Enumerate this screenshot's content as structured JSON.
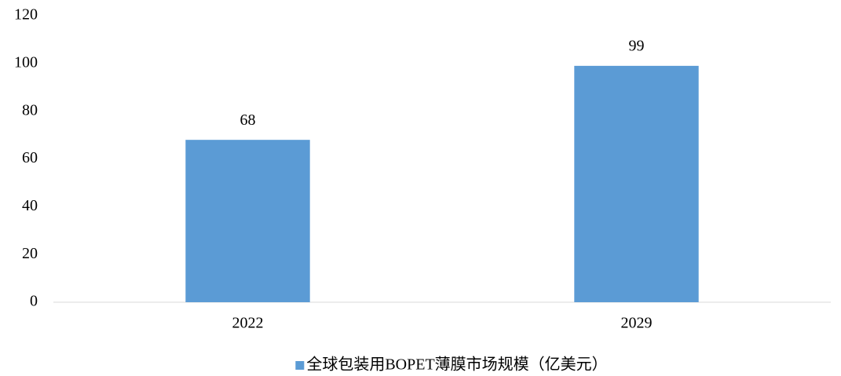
{
  "chart_data": {
    "type": "bar",
    "categories": [
      "2022",
      "2029"
    ],
    "series": [
      {
        "name": "全球包装用BOPET薄膜市场规模（亿美元）",
        "color": "#5b9bd5",
        "values": [
          68,
          99
        ]
      }
    ],
    "ylim": [
      0,
      120
    ],
    "yticks": [
      0,
      20,
      40,
      60,
      80,
      100,
      120
    ],
    "grid": false,
    "data_labels": true,
    "legend": "bottom"
  }
}
